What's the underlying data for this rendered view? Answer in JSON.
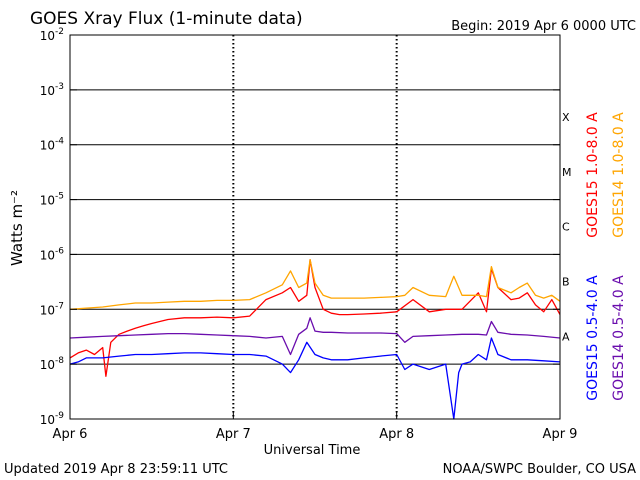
{
  "header": {
    "title": "GOES Xray Flux (1-minute data)",
    "begin": "Begin:  2019 Apr 6 0000 UTC"
  },
  "footer": {
    "updated": "Updated 2019 Apr  8 23:59:11 UTC",
    "credit": "NOAA/SWPC Boulder, CO USA"
  },
  "colors": {
    "goes15_long": "#ff0000",
    "goes14_long": "#ffa500",
    "goes15_short": "#0000ff",
    "goes14_short": "#6a0dad"
  },
  "chart_data": {
    "type": "line",
    "title": "GOES Xray Flux (1-minute data)",
    "xlabel": "Universal Time",
    "ylabel": "Watts m⁻²",
    "x_unit": "days since 2019 Apr 6 0000 UTC",
    "xlim": [
      0,
      3
    ],
    "ylim": [
      1e-09,
      0.01
    ],
    "yscale": "log",
    "x_ticks": [
      {
        "value": 0,
        "label": "Apr 6"
      },
      {
        "value": 1,
        "label": "Apr 7"
      },
      {
        "value": 2,
        "label": "Apr 8"
      },
      {
        "value": 3,
        "label": "Apr 9"
      }
    ],
    "y_ticks": [
      {
        "value": 0.01,
        "base": "10",
        "exp": "-2"
      },
      {
        "value": 0.001,
        "base": "10",
        "exp": "-3"
      },
      {
        "value": 0.0001,
        "base": "10",
        "exp": "-4"
      },
      {
        "value": 1e-05,
        "base": "10",
        "exp": "-5"
      },
      {
        "value": 1e-06,
        "base": "10",
        "exp": "-6"
      },
      {
        "value": 1e-07,
        "base": "10",
        "exp": "-7"
      },
      {
        "value": 1e-08,
        "base": "10",
        "exp": "-8"
      },
      {
        "value": 1e-09,
        "base": "10",
        "exp": "-9"
      }
    ],
    "flare_classes": [
      {
        "label": "X",
        "value": 0.00032
      },
      {
        "label": "M",
        "value": 3.2e-05
      },
      {
        "label": "C",
        "value": 3.2e-06
      },
      {
        "label": "B",
        "value": 3.2e-07
      },
      {
        "label": "A",
        "value": 3.2e-08
      }
    ],
    "grid": "horizontal lines at each decade from 1e-8 to 1e-3",
    "legend_position": "right, vertical",
    "series": [
      {
        "name": "GOES15 1.0-8.0 A",
        "color": "#ff0000",
        "x": [
          0.0,
          0.05,
          0.1,
          0.15,
          0.2,
          0.22,
          0.25,
          0.3,
          0.35,
          0.4,
          0.45,
          0.5,
          0.55,
          0.6,
          0.7,
          0.8,
          0.9,
          1.0,
          1.1,
          1.2,
          1.3,
          1.35,
          1.4,
          1.45,
          1.47,
          1.5,
          1.55,
          1.6,
          1.65,
          1.7,
          1.8,
          1.9,
          2.0,
          2.1,
          2.2,
          2.3,
          2.4,
          2.5,
          2.55,
          2.58,
          2.62,
          2.7,
          2.75,
          2.8,
          2.85,
          2.9,
          2.95,
          3.0
        ],
        "y": [
          1.3e-08,
          1.6e-08,
          1.8e-08,
          1.5e-08,
          2e-08,
          6e-09,
          2.5e-08,
          3.5e-08,
          4e-08,
          4.5e-08,
          5e-08,
          5.5e-08,
          6e-08,
          6.5e-08,
          7e-08,
          7e-08,
          7.2e-08,
          7e-08,
          7.5e-08,
          1.5e-07,
          2e-07,
          2.5e-07,
          1.4e-07,
          1.8e-07,
          8e-07,
          2.5e-07,
          1e-07,
          8.5e-08,
          8e-08,
          8e-08,
          8.2e-08,
          8.5e-08,
          9e-08,
          1.5e-07,
          9e-08,
          1e-07,
          1e-07,
          2e-07,
          9e-08,
          5.5e-07,
          2.5e-07,
          1.5e-07,
          1.6e-07,
          2e-07,
          1.2e-07,
          9e-08,
          1.5e-07,
          8e-08
        ]
      },
      {
        "name": "GOES14 1.0-8.0 A",
        "color": "#ffa500",
        "x": [
          0.0,
          0.1,
          0.2,
          0.3,
          0.4,
          0.5,
          0.6,
          0.7,
          0.8,
          0.9,
          1.0,
          1.1,
          1.2,
          1.3,
          1.35,
          1.4,
          1.45,
          1.47,
          1.5,
          1.55,
          1.6,
          1.7,
          1.8,
          1.9,
          2.0,
          2.05,
          2.1,
          2.2,
          2.3,
          2.35,
          2.4,
          2.5,
          2.55,
          2.58,
          2.62,
          2.7,
          2.75,
          2.8,
          2.85,
          2.9,
          2.95,
          3.0
        ],
        "y": [
          1e-07,
          1.05e-07,
          1.1e-07,
          1.2e-07,
          1.3e-07,
          1.3e-07,
          1.35e-07,
          1.4e-07,
          1.4e-07,
          1.45e-07,
          1.45e-07,
          1.5e-07,
          2e-07,
          2.8e-07,
          5e-07,
          2.5e-07,
          3e-07,
          8e-07,
          3e-07,
          1.8e-07,
          1.6e-07,
          1.6e-07,
          1.6e-07,
          1.65e-07,
          1.7e-07,
          1.8e-07,
          2.5e-07,
          1.8e-07,
          1.7e-07,
          4e-07,
          1.8e-07,
          1.8e-07,
          1.7e-07,
          6e-07,
          2.5e-07,
          2e-07,
          2.5e-07,
          3e-07,
          1.8e-07,
          1.6e-07,
          1.8e-07,
          1.4e-07
        ]
      },
      {
        "name": "GOES15 0.5-4.0 A",
        "color": "#0000ff",
        "x": [
          0.0,
          0.05,
          0.1,
          0.2,
          0.3,
          0.4,
          0.5,
          0.6,
          0.7,
          0.8,
          0.9,
          1.0,
          1.1,
          1.2,
          1.3,
          1.35,
          1.4,
          1.45,
          1.5,
          1.55,
          1.6,
          1.7,
          1.8,
          1.9,
          2.0,
          2.05,
          2.1,
          2.2,
          2.3,
          2.35,
          2.38,
          2.4,
          2.45,
          2.5,
          2.55,
          2.58,
          2.62,
          2.7,
          2.8,
          2.9,
          3.0
        ],
        "y": [
          1e-08,
          1.1e-08,
          1.3e-08,
          1.3e-08,
          1.4e-08,
          1.5e-08,
          1.5e-08,
          1.55e-08,
          1.6e-08,
          1.6e-08,
          1.55e-08,
          1.5e-08,
          1.5e-08,
          1.4e-08,
          1e-08,
          7e-09,
          1.2e-08,
          2.5e-08,
          1.5e-08,
          1.3e-08,
          1.2e-08,
          1.2e-08,
          1.3e-08,
          1.4e-08,
          1.5e-08,
          8e-09,
          1e-08,
          8e-09,
          1e-08,
          1e-09,
          7e-09,
          1e-08,
          1.1e-08,
          1.5e-08,
          1.2e-08,
          3e-08,
          1.5e-08,
          1.2e-08,
          1.2e-08,
          1.15e-08,
          1.1e-08
        ]
      },
      {
        "name": "GOES14 0.5-4.0 A",
        "color": "#6a0dad",
        "x": [
          0.0,
          0.1,
          0.2,
          0.3,
          0.4,
          0.5,
          0.6,
          0.7,
          0.8,
          0.9,
          1.0,
          1.1,
          1.2,
          1.3,
          1.35,
          1.4,
          1.45,
          1.47,
          1.5,
          1.55,
          1.6,
          1.7,
          1.8,
          1.9,
          2.0,
          2.05,
          2.1,
          2.2,
          2.3,
          2.4,
          2.5,
          2.55,
          2.58,
          2.62,
          2.7,
          2.8,
          2.9,
          3.0
        ],
        "y": [
          3e-08,
          3.1e-08,
          3.2e-08,
          3.3e-08,
          3.4e-08,
          3.5e-08,
          3.6e-08,
          3.6e-08,
          3.5e-08,
          3.4e-08,
          3.3e-08,
          3.2e-08,
          3e-08,
          3.2e-08,
          1.5e-08,
          3.5e-08,
          4.5e-08,
          7e-08,
          4e-08,
          3.8e-08,
          3.8e-08,
          3.7e-08,
          3.7e-08,
          3.7e-08,
          3.6e-08,
          2.5e-08,
          3.2e-08,
          3.3e-08,
          3.4e-08,
          3.5e-08,
          3.5e-08,
          3.4e-08,
          6e-08,
          3.8e-08,
          3.5e-08,
          3.4e-08,
          3.2e-08,
          3e-08
        ]
      }
    ]
  }
}
